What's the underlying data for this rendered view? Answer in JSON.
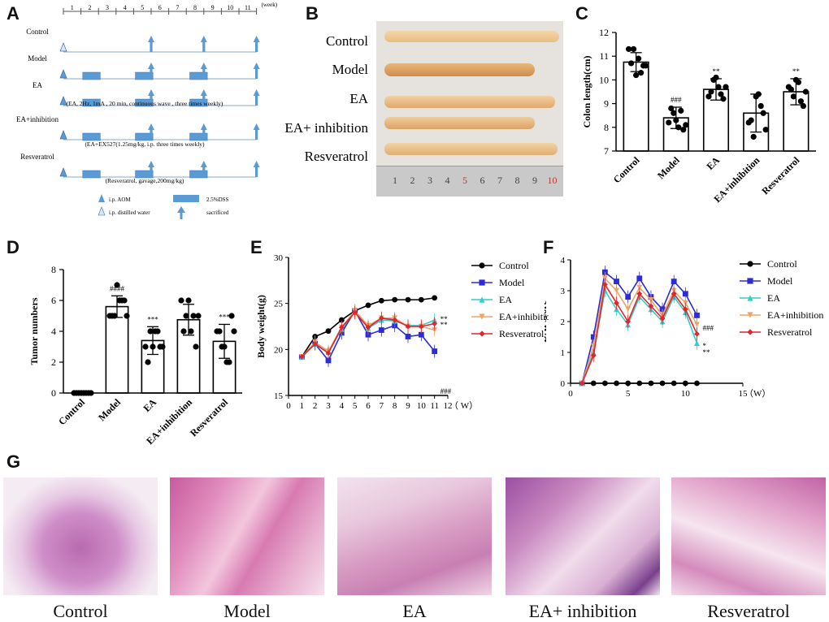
{
  "figure": {
    "panel_letters": [
      "A",
      "B",
      "C",
      "D",
      "E",
      "F",
      "G"
    ],
    "colors": {
      "arrow_blue": "#5b9bd5",
      "timeline": "#8aa9c9",
      "control": "#000000",
      "model": "#2b2bd9",
      "ea": "#33cccc",
      "ea_inhibition": "#e8a66a",
      "resveratrol": "#e3242b"
    }
  },
  "panelA": {
    "week_numbers": [
      "1",
      "2",
      "3",
      "4",
      "5",
      "6",
      "7",
      "8",
      "9",
      "10",
      "11"
    ],
    "week_label": "(week)",
    "rows": [
      {
        "label": "Control",
        "note": ""
      },
      {
        "label": "Model",
        "note": ""
      },
      {
        "label": "EA",
        "note": "(EA, 2Hz, 1mA , 20 min, continuous wave , three times weekly)"
      },
      {
        "label": "EA+inhibition",
        "note": "(EA+EX527(1.25mg/kg, i.p. three times weekly)"
      },
      {
        "label": "Resveratrol",
        "note": "(Resveratrol, gavage,200mg/kg)"
      }
    ],
    "legend": {
      "aom": "i.p. AOM",
      "water": "i.p. distilled water",
      "dss": "2.5%DSS",
      "sacrificed": "sacrificed"
    }
  },
  "panelB": {
    "labels": [
      "Control",
      "Model",
      "EA",
      "EA+ inhibition",
      "Resveratrol"
    ],
    "ruler": [
      "1",
      "2",
      "3",
      "4",
      "5",
      "6",
      "7",
      "8",
      "9",
      "10"
    ]
  },
  "chart_data": [
    {
      "id": "C",
      "type": "bar",
      "ylabel": "Colon length(cm)",
      "ylim": [
        7,
        12
      ],
      "yticks": [
        "7",
        "8",
        "9",
        "10",
        "11",
        "12"
      ],
      "categories": [
        "Control",
        "Model",
        "EA",
        "EA+inhibition",
        "Resveratrol"
      ],
      "values": [
        10.75,
        8.4,
        9.6,
        8.6,
        9.5
      ],
      "errors": [
        0.4,
        0.45,
        0.45,
        0.8,
        0.55
      ],
      "annotations": [
        "",
        "###",
        "**",
        "",
        "**"
      ],
      "points": [
        [
          11.3,
          11.3,
          10.9,
          10.6,
          10.7,
          10.2,
          10.3,
          10.6
        ],
        [
          8.2,
          8.6,
          8.0,
          7.9,
          8.8,
          8.3,
          8.7,
          8.1
        ],
        [
          9.3,
          10.0,
          9.7,
          9.2,
          9.5,
          10.1,
          9.4,
          9.7
        ],
        [
          8.2,
          7.6,
          9.4,
          8.6,
          8.3,
          9.3,
          8.9,
          7.9
        ],
        [
          9.7,
          9.3,
          9.9,
          8.9,
          9.6,
          10.0,
          9.1,
          9.5
        ]
      ]
    },
    {
      "id": "D",
      "type": "bar",
      "ylabel": "Tumor numbers",
      "ylim": [
        0,
        8
      ],
      "yticks": [
        "0",
        "2",
        "4",
        "6",
        "8"
      ],
      "categories": [
        "Control",
        "Model",
        "EA",
        "EA+inhibition",
        "Resveratrol"
      ],
      "values": [
        0,
        5.6,
        3.4,
        4.75,
        3.35
      ],
      "errors": [
        0,
        0.7,
        0.9,
        1.0,
        1.1
      ],
      "annotations": [
        "",
        "####",
        "***",
        "",
        "***"
      ],
      "points": [
        [
          0,
          0,
          0,
          0,
          0,
          0,
          0,
          0
        ],
        [
          5,
          5,
          6,
          6,
          5,
          7,
          6,
          5
        ],
        [
          3,
          4,
          4,
          3,
          2,
          3,
          4,
          3
        ],
        [
          6,
          5,
          4,
          3,
          4,
          6,
          5,
          5
        ],
        [
          4,
          3,
          2,
          5,
          4,
          3,
          2,
          4
        ]
      ]
    },
    {
      "id": "E",
      "type": "line",
      "ylabel": "Body weight(g)",
      "xlim": [
        0,
        12
      ],
      "ylim": [
        15,
        30
      ],
      "xticks": [
        "0",
        "1",
        "2",
        "3",
        "4",
        "5",
        "6",
        "7",
        "8",
        "9",
        "10",
        "11",
        "12"
      ],
      "yticks": [
        "15",
        "20",
        "25",
        "30"
      ],
      "x_unit": "（ W）",
      "x": [
        1,
        2,
        3,
        4,
        5,
        6,
        7,
        8,
        9,
        10,
        11
      ],
      "series": [
        {
          "name": "Control",
          "values": [
            19.2,
            21.4,
            22.0,
            23.2,
            24.2,
            24.8,
            25.3,
            25.4,
            25.4,
            25.4,
            25.6
          ]
        },
        {
          "name": "Model",
          "values": [
            19.2,
            20.6,
            18.8,
            21.8,
            24.2,
            21.6,
            22.1,
            22.6,
            21.4,
            21.6,
            19.8
          ]
        },
        {
          "name": "EA",
          "values": [
            19.2,
            20.6,
            19.7,
            22.2,
            24.2,
            22.3,
            23.2,
            23.1,
            22.6,
            22.6,
            23.2
          ]
        },
        {
          "name": "EA+inhibition",
          "values": [
            19.2,
            20.8,
            19.8,
            22.4,
            24.2,
            22.6,
            23.4,
            23.4,
            22.5,
            22.5,
            22.1
          ]
        },
        {
          "name": "Resveratrol",
          "values": [
            19.2,
            20.6,
            19.6,
            22.4,
            24.0,
            22.4,
            23.4,
            23.2,
            22.5,
            22.5,
            22.8
          ]
        }
      ],
      "annotations": [
        "**",
        "**",
        "###"
      ]
    },
    {
      "id": "F",
      "type": "line",
      "ylabel": "DAI score",
      "xlim": [
        0,
        15
      ],
      "ylim": [
        0,
        4
      ],
      "xticks": [
        "0",
        "5",
        "10",
        "15"
      ],
      "yticks": [
        "0",
        "1",
        "2",
        "3",
        "4"
      ],
      "x_unit": "（W）",
      "x": [
        1,
        2,
        3,
        4,
        5,
        6,
        7,
        8,
        9,
        10,
        11
      ],
      "series": [
        {
          "name": "Control",
          "values": [
            0,
            0,
            0,
            0,
            0,
            0,
            0,
            0,
            0,
            0,
            0
          ]
        },
        {
          "name": "Model",
          "values": [
            0,
            1.5,
            3.6,
            3.3,
            2.8,
            3.4,
            2.8,
            2.4,
            3.3,
            2.9,
            2.2
          ]
        },
        {
          "name": "EA",
          "values": [
            0,
            1.0,
            3.0,
            2.4,
            1.9,
            2.8,
            2.4,
            2.0,
            2.8,
            2.3,
            1.3
          ]
        },
        {
          "name": "EA+inhibition",
          "values": [
            0,
            1.2,
            3.4,
            3.0,
            2.4,
            3.1,
            2.7,
            2.2,
            3.0,
            2.6,
            1.9
          ]
        },
        {
          "name": "Resveratrol",
          "values": [
            0,
            0.9,
            3.2,
            2.6,
            2.0,
            2.9,
            2.5,
            2.1,
            2.9,
            2.4,
            1.6
          ]
        }
      ],
      "annotations": [
        "###",
        "*",
        "**"
      ]
    }
  ],
  "panelG": {
    "captions": [
      "Control",
      "Model",
      "EA",
      "EA+ inhibition",
      "Resveratrol"
    ]
  }
}
